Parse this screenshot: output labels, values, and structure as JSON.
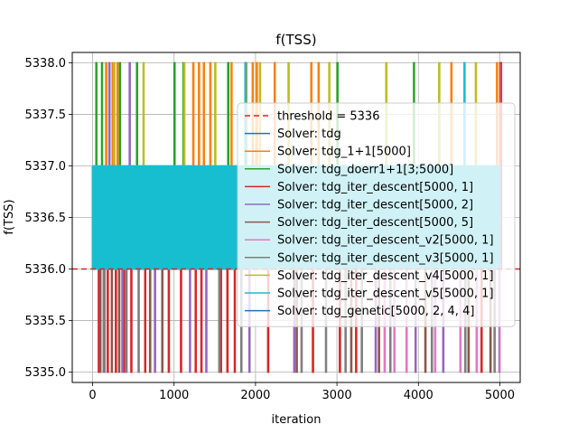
{
  "chart_data": {
    "type": "line",
    "title": "f(TSS)",
    "xlabel": "iteration",
    "ylabel": "f(TSS)",
    "xlim": [
      -250,
      5250
    ],
    "ylim": [
      5334.9,
      5338.1
    ],
    "xticks": [
      0,
      1000,
      2000,
      3000,
      4000,
      5000
    ],
    "xtick_labels": [
      "0",
      "1000",
      "2000",
      "3000",
      "4000",
      "5000"
    ],
    "yticks": [
      5335.0,
      5335.5,
      5336.0,
      5336.5,
      5337.0,
      5337.5,
      5338.0
    ],
    "ytick_labels": [
      "5335.0",
      "5335.5",
      "5336.0",
      "5336.5",
      "5337.0",
      "5337.5",
      "5338.0"
    ],
    "grid": true,
    "legend_position": "center-right",
    "threshold": {
      "name": "threshold = 5336",
      "value": 5336,
      "color": "#d62728",
      "style": "dashed"
    },
    "series": [
      {
        "name": "Solver: tdg",
        "color": "#1f77b4",
        "base": 5336,
        "spikes": []
      },
      {
        "name": "Solver: tdg_1+1[5000]",
        "color": "#ff7f0e",
        "base": 5336,
        "spikes": [
          [
            160,
            5338
          ],
          [
            240,
            5338
          ],
          [
            300,
            5338
          ],
          [
            1230,
            5338
          ],
          [
            1300,
            5338
          ],
          [
            1360,
            5338
          ],
          [
            1440,
            5338
          ],
          [
            1700,
            5338
          ],
          [
            1880,
            5338
          ],
          [
            1960,
            5338
          ],
          [
            2010,
            5338
          ],
          [
            2230,
            5338
          ],
          [
            2680,
            5338
          ],
          [
            2770,
            5338
          ],
          [
            4400,
            5338
          ],
          [
            4960,
            5338
          ]
        ]
      },
      {
        "name": "Solver: tdg_doerr1+1[3;5000]",
        "color": "#2ca02c",
        "base": 5336,
        "spikes": [
          [
            40,
            5338
          ],
          [
            110,
            5338
          ],
          [
            330,
            5338
          ],
          [
            540,
            5338
          ],
          [
            1000,
            5338
          ],
          [
            1110,
            5338
          ],
          [
            1660,
            5338
          ],
          [
            3000,
            5338
          ],
          [
            3940,
            5338
          ]
        ]
      },
      {
        "name": "Solver: tdg_iter_descent[5000, 1]",
        "color": "#d62728",
        "base": 5336,
        "spikes": [
          [
            70,
            5335
          ],
          [
            180,
            5335
          ],
          [
            280,
            5335
          ],
          [
            380,
            5335
          ],
          [
            470,
            5335
          ],
          [
            640,
            5335
          ],
          [
            930,
            5335
          ],
          [
            1080,
            5335
          ],
          [
            1260,
            5335
          ],
          [
            1330,
            5335
          ],
          [
            1570,
            5335
          ],
          [
            1650,
            5335
          ],
          [
            1740,
            5335
          ],
          [
            2150,
            5335
          ],
          [
            2700,
            5335
          ],
          [
            3030,
            5335
          ],
          [
            3230,
            5335
          ],
          [
            4770,
            5335
          ],
          [
            5020,
            5338
          ]
        ]
      },
      {
        "name": "Solver: tdg_iter_descent[5000, 2]",
        "color": "#9467bd",
        "base": 5336,
        "spikes": [
          [
            140,
            5335
          ],
          [
            200,
            5338
          ],
          [
            360,
            5335
          ],
          [
            450,
            5338
          ],
          [
            760,
            5335
          ],
          [
            1190,
            5335
          ],
          [
            1390,
            5335
          ],
          [
            1920,
            5335
          ],
          [
            2470,
            5335
          ],
          [
            3470,
            5335
          ],
          [
            3960,
            5335
          ],
          [
            4300,
            5335
          ],
          [
            4990,
            5335
          ]
        ]
      },
      {
        "name": "Solver: tdg_iter_descent[5000, 5]",
        "color": "#8c564b",
        "base": 5336,
        "spikes": [
          [
            90,
            5335
          ],
          [
            230,
            5335
          ],
          [
            320,
            5335
          ],
          [
            700,
            5335
          ],
          [
            850,
            5335
          ],
          [
            2500,
            5335
          ],
          [
            3170,
            5335
          ],
          [
            3510,
            5335
          ],
          [
            4080,
            5335
          ],
          [
            4610,
            5335
          ],
          [
            4880,
            5335
          ]
        ]
      },
      {
        "name": "Solver: tdg_iter_descent_v2[5000, 1]",
        "color": "#e377c2",
        "base": 5336,
        "spikes": [
          [
            3580,
            5335
          ],
          [
            3700,
            5335
          ],
          [
            3850,
            5335
          ],
          [
            4200,
            5335
          ],
          [
            4510,
            5335
          ],
          [
            4710,
            5335
          ],
          [
            5000,
            5335
          ]
        ]
      },
      {
        "name": "Solver: tdg_iter_descent_v3[5000, 1]",
        "color": "#7f7f7f",
        "base": 5336,
        "spikes": [
          [
            130,
            5335
          ],
          [
            410,
            5335
          ],
          [
            560,
            5335
          ],
          [
            1550,
            5335
          ],
          [
            1820,
            5335
          ],
          [
            2560,
            5335
          ],
          [
            2860,
            5335
          ],
          [
            3100,
            5335
          ],
          [
            3300,
            5335
          ],
          [
            3650,
            5335
          ],
          [
            4160,
            5335
          ],
          [
            4570,
            5335
          ],
          [
            4930,
            5335
          ]
        ]
      },
      {
        "name": "Solver: tdg_iter_descent_v4[5000, 1]",
        "color": "#bcbd22",
        "base": 5336,
        "spikes": [
          [
            260,
            5338
          ],
          [
            620,
            5338
          ],
          [
            1120,
            5338
          ],
          [
            1500,
            5338
          ],
          [
            2050,
            5338
          ],
          [
            2400,
            5338
          ],
          [
            2900,
            5338
          ],
          [
            3600,
            5338
          ],
          [
            4250,
            5338
          ],
          [
            4700,
            5338
          ]
        ]
      },
      {
        "name": "Solver: tdg_iter_descent_v5[5000, 1]",
        "color": "#17becf",
        "base": 5337,
        "spikes": [
          [
            20,
            5336
          ],
          [
            150,
            5336
          ],
          [
            290,
            5336
          ],
          [
            480,
            5336
          ],
          [
            610,
            5336
          ],
          [
            780,
            5336
          ],
          [
            930,
            5336
          ],
          [
            1090,
            5336
          ],
          [
            1250,
            5336
          ],
          [
            1430,
            5336
          ],
          [
            1600,
            5336
          ],
          [
            1760,
            5336
          ],
          [
            1870,
            5338
          ],
          [
            2000,
            5336
          ],
          [
            2240,
            5336
          ],
          [
            2430,
            5336
          ],
          [
            2630,
            5336
          ],
          [
            2820,
            5336
          ],
          [
            3010,
            5336
          ],
          [
            3180,
            5336
          ],
          [
            3380,
            5336
          ],
          [
            3580,
            5336
          ],
          [
            3790,
            5336
          ],
          [
            3980,
            5336
          ],
          [
            4190,
            5336
          ],
          [
            4370,
            5336
          ],
          [
            4560,
            5338
          ],
          [
            4640,
            5336
          ],
          [
            4810,
            5336
          ],
          [
            4950,
            5336
          ]
        ]
      },
      {
        "name": "Solver: tdg_genetic[5000, 2, 4, 4]",
        "color": "#1f77b4",
        "base": 5336,
        "spikes": []
      }
    ]
  }
}
